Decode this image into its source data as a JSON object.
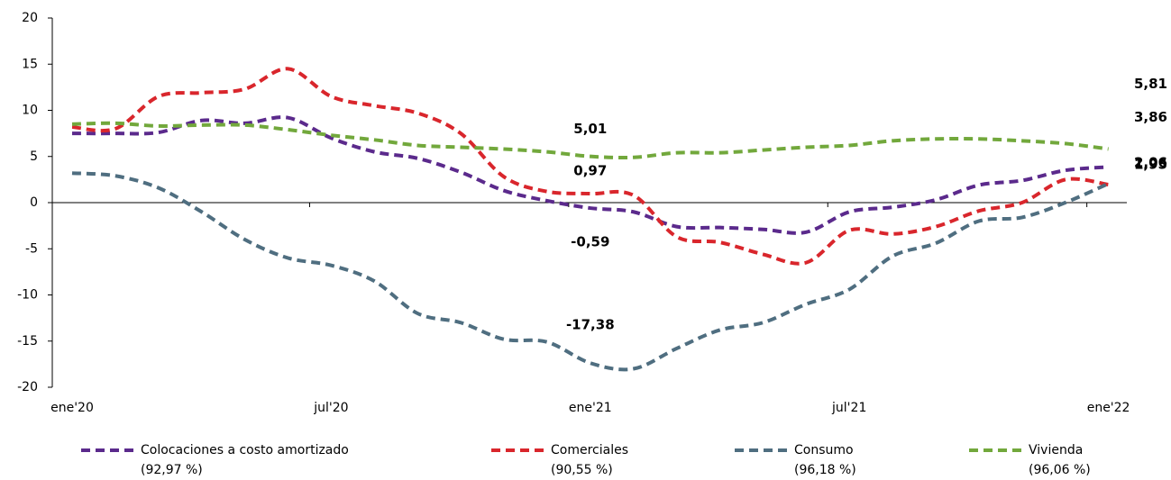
{
  "chart_data": {
    "type": "line",
    "categories": [
      "ene'20",
      null,
      null,
      null,
      null,
      null,
      "jul'20",
      null,
      null,
      null,
      null,
      null,
      "ene'21",
      null,
      null,
      null,
      null,
      null,
      "jul'21",
      null,
      null,
      null,
      null,
      null,
      "ene'22"
    ],
    "ylim": [
      -20,
      20
    ],
    "yticks": [
      -20,
      -15,
      -10,
      -5,
      0,
      5,
      10,
      15,
      20
    ],
    "series": [
      {
        "name": "Colocaciones a costo amortizado",
        "legend_note": "(92,97 %)",
        "color": "#5b2a8c",
        "label_color": "#7030a0",
        "values": [
          7.5,
          7.5,
          7.6,
          8.9,
          8.6,
          9.2,
          7.0,
          5.5,
          4.8,
          3.3,
          1.3,
          0.2,
          -0.59,
          -1.0,
          -2.6,
          -2.7,
          -2.9,
          -3.2,
          -1.0,
          -0.5,
          0.3,
          1.9,
          2.4,
          3.5,
          3.86
        ],
        "value_labels": [
          null,
          null,
          null,
          null,
          null,
          null,
          null,
          null,
          null,
          null,
          null,
          null,
          "-0,59",
          null,
          null,
          null,
          null,
          null,
          null,
          null,
          null,
          null,
          null,
          null,
          "3,86"
        ]
      },
      {
        "name": "Comerciales",
        "legend_note": "(90,55 %)",
        "color": "#d9262c",
        "label_color": "#c00000",
        "values": [
          8.2,
          8.0,
          11.5,
          11.9,
          12.3,
          14.5,
          11.5,
          10.5,
          9.7,
          7.5,
          2.8,
          1.2,
          0.97,
          0.8,
          -3.7,
          -4.3,
          -5.6,
          -6.5,
          -3.0,
          -3.4,
          -2.6,
          -0.9,
          0.0,
          2.5,
          1.95
        ],
        "value_labels": [
          null,
          null,
          null,
          null,
          null,
          null,
          null,
          null,
          null,
          null,
          null,
          null,
          "0,97",
          null,
          null,
          null,
          null,
          null,
          null,
          null,
          null,
          null,
          null,
          null,
          "1,95"
        ]
      },
      {
        "name": "Consumo",
        "legend_note": "(96,18 %)",
        "color": "#4f6e80",
        "label_color": "#5b8dc9",
        "values": [
          3.2,
          2.9,
          1.6,
          -1.0,
          -4.0,
          -6.0,
          -6.8,
          -8.5,
          -12.0,
          -13.0,
          -14.8,
          -15.1,
          -17.38,
          -18.0,
          -15.8,
          -13.8,
          -13.0,
          -11.0,
          -9.4,
          -5.8,
          -4.4,
          -2.0,
          -1.6,
          0.0,
          2.06
        ],
        "value_labels": [
          null,
          null,
          null,
          null,
          null,
          null,
          null,
          null,
          null,
          null,
          null,
          null,
          "-17,38",
          null,
          null,
          null,
          null,
          null,
          null,
          null,
          null,
          null,
          null,
          null,
          "2,06"
        ]
      },
      {
        "name": "Vivienda",
        "legend_note": "(96,06 %)",
        "color": "#72a83c",
        "label_color": "#008000",
        "values": [
          8.5,
          8.6,
          8.3,
          8.4,
          8.4,
          7.9,
          7.3,
          6.8,
          6.2,
          6.0,
          5.8,
          5.5,
          5.01,
          4.9,
          5.4,
          5.4,
          5.7,
          6.0,
          6.2,
          6.7,
          6.9,
          6.9,
          6.7,
          6.4,
          5.81
        ],
        "value_labels": [
          null,
          null,
          null,
          null,
          null,
          null,
          null,
          null,
          null,
          null,
          null,
          null,
          "5,01",
          null,
          null,
          null,
          null,
          null,
          null,
          null,
          null,
          null,
          null,
          null,
          "5,81"
        ]
      }
    ]
  }
}
